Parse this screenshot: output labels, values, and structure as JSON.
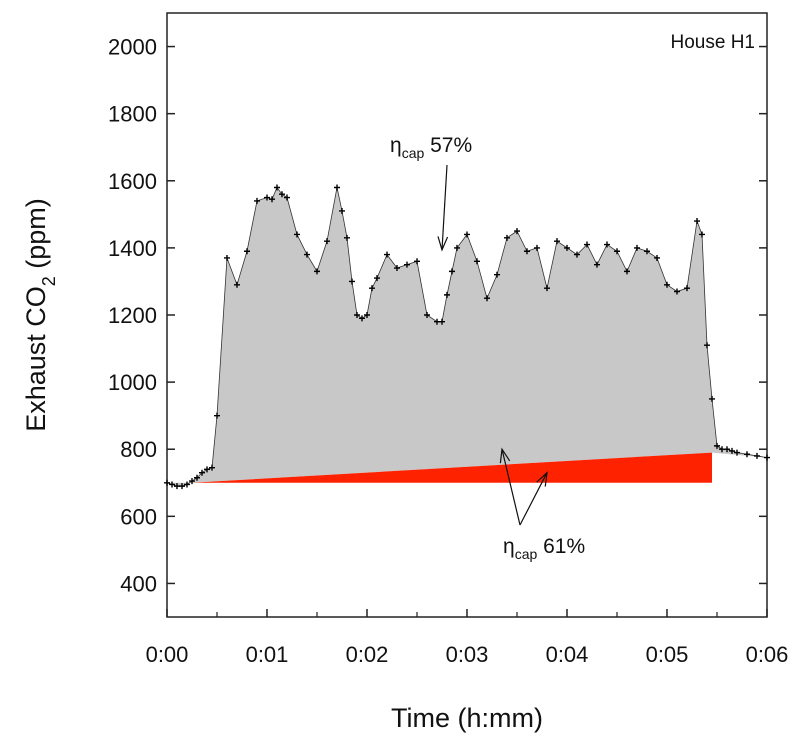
{
  "chart_data": {
    "type": "area",
    "title": "",
    "panel_label": "House H1",
    "xlabel": "Time (h:mm)",
    "ylabel": {
      "main": "Exhaust CO",
      "subscript": "2",
      "suffix": " (ppm)"
    },
    "xlim": [
      0,
      6
    ],
    "ylim": [
      300,
      2100
    ],
    "x_ticks": [
      0,
      1,
      2,
      3,
      4,
      5,
      6
    ],
    "x_tick_labels": [
      "0:00",
      "0:01",
      "0:02",
      "0:03",
      "0:04",
      "0:05",
      "0:06"
    ],
    "y_ticks": [
      400,
      600,
      800,
      1000,
      1200,
      1400,
      1600,
      1800,
      2000
    ],
    "y_tick_labels": [
      "400",
      "600",
      "800",
      "1000",
      "1200",
      "1400",
      "1600",
      "1800",
      "2000"
    ],
    "x_unit": "minutes",
    "grid": false,
    "series": [
      {
        "x": [
          0.0,
          0.05,
          0.1,
          0.15,
          0.2,
          0.25,
          0.3,
          0.35,
          0.4,
          0.45,
          0.5,
          0.6,
          0.7,
          0.8,
          0.9,
          1.0,
          1.05,
          1.1,
          1.15,
          1.2,
          1.3,
          1.4,
          1.5,
          1.6,
          1.7,
          1.75,
          1.8,
          1.85,
          1.9,
          1.95,
          2.0,
          2.05,
          2.1,
          2.2,
          2.3,
          2.4,
          2.5,
          2.6,
          2.7,
          2.75,
          2.8,
          2.85,
          2.9,
          3.0,
          3.1,
          3.2,
          3.3,
          3.4,
          3.5,
          3.6,
          3.7,
          3.8,
          3.9,
          4.0,
          4.1,
          4.2,
          4.3,
          4.4,
          4.5,
          4.6,
          4.7,
          4.8,
          4.9,
          5.0,
          5.1,
          5.2,
          5.3,
          5.35,
          5.4,
          5.45,
          5.5,
          5.55,
          5.6,
          5.65,
          5.7,
          5.8,
          5.9,
          6.0
        ],
        "y": [
          700,
          695,
          690,
          690,
          695,
          705,
          715,
          730,
          740,
          745,
          900,
          1370,
          1290,
          1390,
          1540,
          1550,
          1545,
          1580,
          1560,
          1550,
          1440,
          1380,
          1330,
          1420,
          1580,
          1510,
          1430,
          1300,
          1200,
          1190,
          1200,
          1280,
          1310,
          1380,
          1340,
          1350,
          1360,
          1200,
          1180,
          1180,
          1260,
          1330,
          1400,
          1440,
          1360,
          1250,
          1320,
          1430,
          1450,
          1390,
          1400,
          1280,
          1420,
          1400,
          1380,
          1410,
          1350,
          1410,
          1390,
          1330,
          1400,
          1390,
          1370,
          1290,
          1270,
          1280,
          1480,
          1440,
          1110,
          950,
          810,
          800,
          800,
          795,
          790,
          785,
          780,
          775
        ]
      },
      {
        "name": "baseline",
        "x": [
          0.25,
          5.45
        ],
        "y": [
          700,
          790
        ],
        "y_lower": [
          700,
          700
        ]
      }
    ],
    "annotations": [
      {
        "symbol": "η",
        "subscript": "cap",
        "text": " 57%",
        "points_to_x": 2.75,
        "points_to_y": 1400
      },
      {
        "symbol": "η",
        "subscript": "cap",
        "text": " 61%",
        "points_to_x": [
          3.35,
          3.8
        ],
        "points_to_y": [
          800,
          730
        ]
      }
    ],
    "colors": {
      "area_fill": "#c8c8c8",
      "baseline_fill": "#ff2200",
      "markers": "#000000"
    }
  }
}
